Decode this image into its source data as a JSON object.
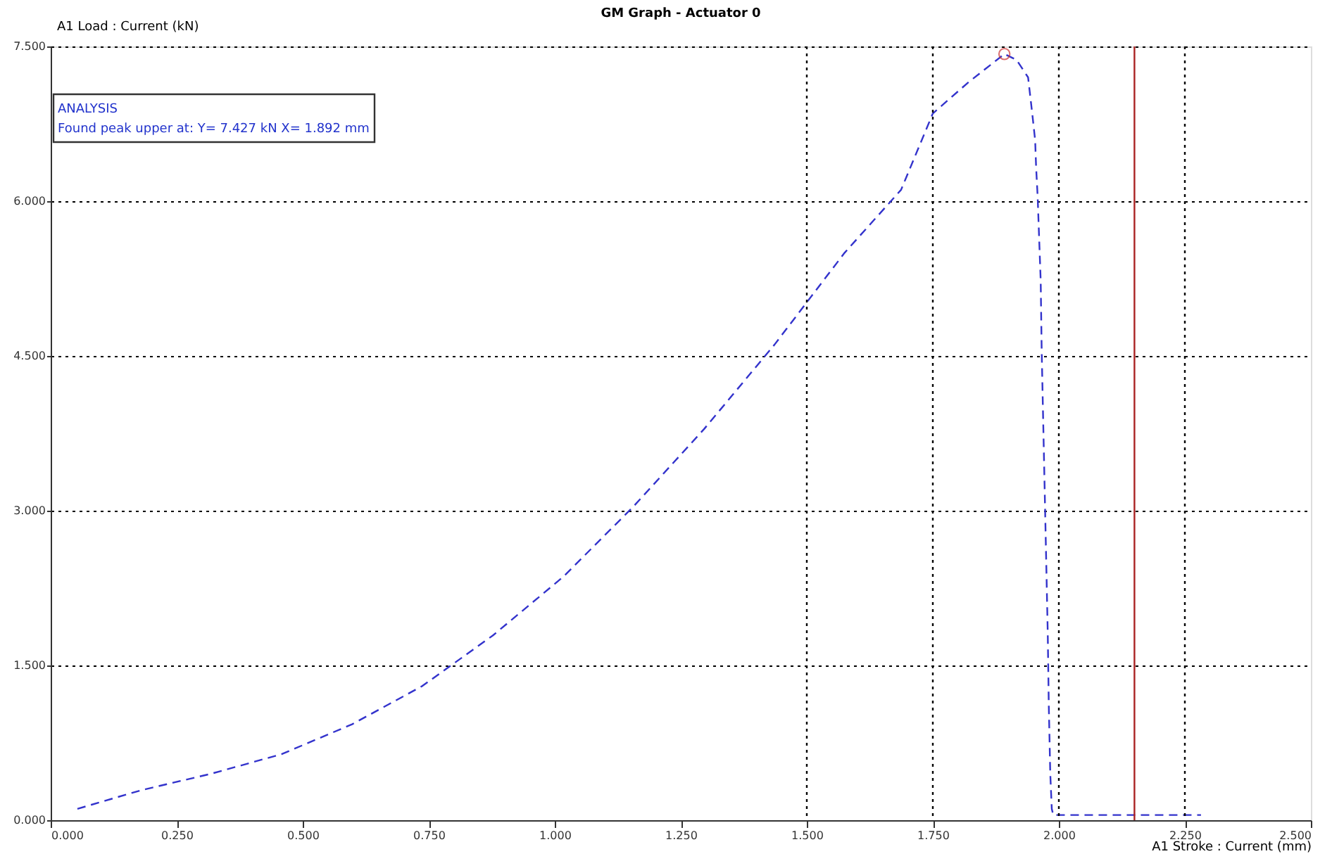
{
  "chart_data": {
    "type": "line",
    "title": "GM Graph - Actuator 0",
    "xlabel": "A1 Stroke : Current (mm)",
    "ylabel": "A1 Load : Current (kN)",
    "annotations": [
      "ANALYSIS",
      "Found peak upper at: Y= 7.427 kN X= 1.892 mm"
    ],
    "xlim": [
      0,
      2.5
    ],
    "ylim": [
      0,
      7.5
    ],
    "xticks": [
      {
        "value": 0,
        "label": "0.000"
      },
      {
        "value": 0.25,
        "label": "0.250"
      },
      {
        "value": 0.5,
        "label": "0.500"
      },
      {
        "value": 0.75,
        "label": "0.750"
      },
      {
        "value": 1,
        "label": "1.000"
      },
      {
        "value": 1.25,
        "label": "1.250"
      },
      {
        "value": 1.5,
        "label": "1.500"
      },
      {
        "value": 1.75,
        "label": "1.750"
      },
      {
        "value": 2,
        "label": "2.000"
      },
      {
        "value": 2.25,
        "label": "2.250"
      },
      {
        "value": 2.5,
        "label": "2.500"
      }
    ],
    "yticks": [
      {
        "value": 0,
        "label": "0.000"
      },
      {
        "value": 1.5,
        "label": "1.500"
      },
      {
        "value": 3,
        "label": "3.000"
      },
      {
        "value": 4.5,
        "label": "4.500"
      },
      {
        "value": 6,
        "label": "6.000"
      },
      {
        "value": 7.5,
        "label": "7.500"
      }
    ],
    "grid": "y",
    "series": [
      {
        "color": "#3333cc",
        "line_style": "dashed",
        "marker": "none",
        "x": [
          0.053,
          0.179,
          0.318,
          0.458,
          0.598,
          0.737,
          0.877,
          1.017,
          1.156,
          1.296,
          1.436,
          1.575,
          1.687,
          1.75,
          1.82,
          1.892,
          1.916,
          1.939,
          1.947,
          1.953,
          1.955,
          1.958,
          1.961,
          1.964,
          1.966,
          1.969,
          1.972,
          1.975,
          1.978,
          1.98,
          1.983,
          1.986,
          1.989,
          2.282
        ],
        "values": [
          0.11,
          0.29,
          0.45,
          0.64,
          0.93,
          1.3,
          1.79,
          2.36,
          3.04,
          3.79,
          4.61,
          5.5,
          6.11,
          6.85,
          7.15,
          7.427,
          7.37,
          7.2,
          6.86,
          6.59,
          6.32,
          6.04,
          5.63,
          5.23,
          4.54,
          3.86,
          3.18,
          2.5,
          1.81,
          1.13,
          0.45,
          0.11,
          0.05,
          0.05
        ]
      },
      {
        "type": "scatter",
        "color": "#cc3333",
        "marker": "circle",
        "x": [
          1.892
        ],
        "values": [
          7.427
        ]
      }
    ],
    "ref_lines": [
      {
        "axis": "x",
        "value": 1.5,
        "color": "#000000",
        "line_style": "dotted"
      },
      {
        "axis": "x",
        "value": 1.75,
        "color": "#000000",
        "line_style": "dotted"
      },
      {
        "axis": "x",
        "value": 2.0,
        "color": "#000000",
        "line_style": "dotted"
      },
      {
        "axis": "x",
        "value": 2.25,
        "color": "#000000",
        "line_style": "dotted"
      },
      {
        "axis": "x",
        "value": 2.15,
        "color": "#aa2222",
        "line_style": "solid"
      }
    ]
  }
}
